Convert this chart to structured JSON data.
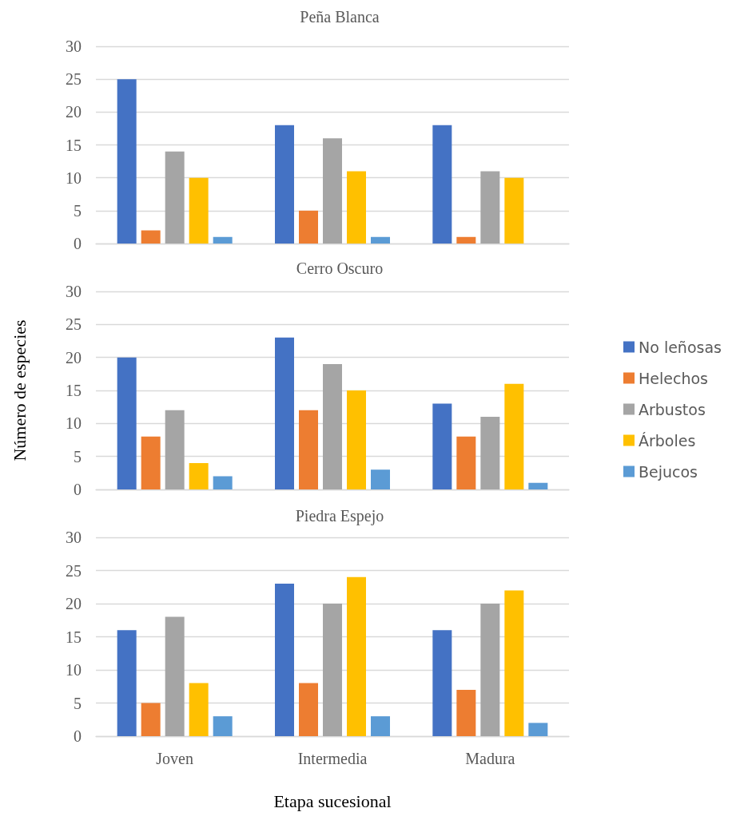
{
  "chart_data": [
    {
      "type": "bar",
      "title": "Peña Blanca",
      "categories": [
        null,
        null,
        null
      ],
      "series": [
        {
          "color": "#4472c4",
          "values": [
            25,
            18,
            18
          ]
        },
        {
          "color": "#ed7d31",
          "values": [
            2,
            5,
            1
          ]
        },
        {
          "color": "#a5a5a5",
          "values": [
            14,
            16,
            11
          ]
        },
        {
          "color": "#ffc000",
          "values": [
            10,
            11,
            10
          ]
        },
        {
          "color": "#5b9bd5",
          "values": [
            1,
            1,
            0
          ]
        }
      ],
      "ylim": [
        0,
        30
      ],
      "yticks": [
        0,
        5,
        10,
        15,
        20,
        25,
        30
      ],
      "grid": "y",
      "legend": false,
      "tick_labels": "y"
    },
    {
      "type": "bar",
      "title": "Cerro Oscuro",
      "ylabel": "Número de especies",
      "categories": [
        null,
        null,
        null
      ],
      "series": [
        {
          "name": "No leñosas",
          "color": "#4472c4",
          "values": [
            20,
            23,
            13
          ]
        },
        {
          "name": "Helechos",
          "color": "#ed7d31",
          "values": [
            8,
            12,
            8
          ]
        },
        {
          "name": "Arbustos",
          "color": "#a5a5a5",
          "values": [
            12,
            19,
            11
          ]
        },
        {
          "name": "Árboles",
          "color": "#ffc000",
          "values": [
            4,
            15,
            16
          ]
        },
        {
          "name": "Bejucos",
          "color": "#5b9bd5",
          "values": [
            2,
            3,
            1
          ]
        }
      ],
      "ylim": [
        0,
        30
      ],
      "yticks": [
        0,
        5,
        10,
        15,
        20,
        25,
        30
      ],
      "grid": "y",
      "legend": "right",
      "tick_labels": "y"
    },
    {
      "type": "bar",
      "title": "Piedra Espejo",
      "xlabel": "Etapa sucesional",
      "categories": [
        "Joven",
        "Intermedia",
        "Madura"
      ],
      "series": [
        {
          "color": "#4472c4",
          "values": [
            16,
            23,
            16
          ]
        },
        {
          "color": "#ed7d31",
          "values": [
            5,
            8,
            7
          ]
        },
        {
          "color": "#a5a5a5",
          "values": [
            18,
            20,
            20
          ]
        },
        {
          "color": "#ffc000",
          "values": [
            8,
            24,
            22
          ]
        },
        {
          "color": "#5b9bd5",
          "values": [
            3,
            3,
            2
          ]
        }
      ],
      "ylim": [
        0,
        30
      ],
      "yticks": [
        0,
        5,
        10,
        15,
        20,
        25,
        30
      ],
      "grid": "y",
      "legend": false
    }
  ]
}
